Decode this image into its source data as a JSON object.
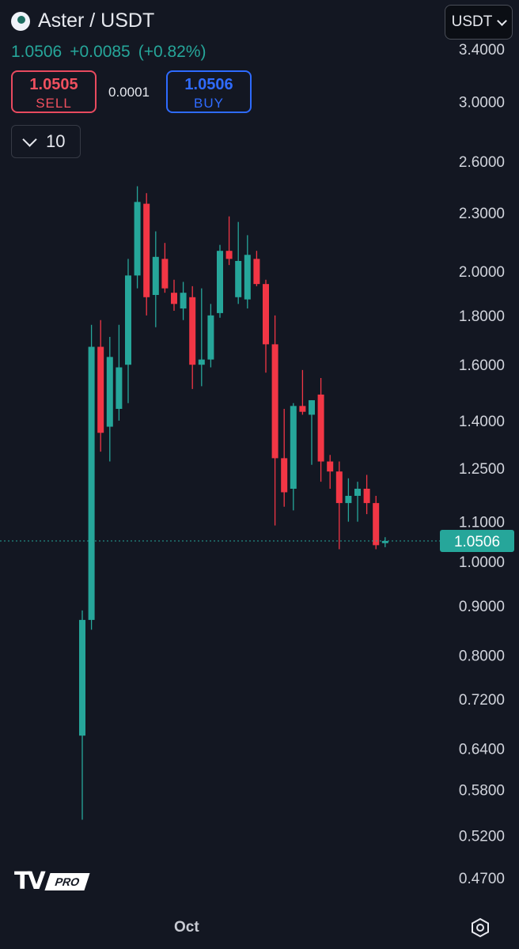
{
  "header": {
    "pair": "Aster / USDT",
    "last_price": "1.0506",
    "change": "+0.0085",
    "change_pct": "(+0.82%)",
    "sell_price": "1.0505",
    "sell_label": "SELL",
    "spread": "0.0001",
    "buy_price": "1.0506",
    "buy_label": "BUY",
    "interval": "10",
    "currency": "USDT"
  },
  "colors": {
    "up": "#26a69a",
    "down": "#f23645",
    "background": "#131722"
  },
  "icons": [
    "aster-logo-icon",
    "chevron-down-icon",
    "settings-icon",
    "tradingview-logo-icon"
  ],
  "branding": {
    "tv_pro": "PRO"
  },
  "chart_data": {
    "type": "candlestick",
    "y_scale": "log",
    "ylim": [
      0.45,
      3.5
    ],
    "y_ticks": [
      "3.4000",
      "3.0000",
      "2.6000",
      "2.3000",
      "2.0000",
      "1.8000",
      "1.6000",
      "1.4000",
      "1.2500",
      "1.1000",
      "1.0000",
      "0.9000",
      "0.8000",
      "0.7200",
      "0.6400",
      "0.5800",
      "0.5200",
      "0.4700"
    ],
    "x_ticks": [
      "Oct"
    ],
    "current_price_label": "1.0506",
    "candles": [
      {
        "o": 0.66,
        "h": 0.89,
        "l": 0.54,
        "c": 0.87
      },
      {
        "o": 0.87,
        "h": 1.76,
        "l": 0.85,
        "c": 1.67
      },
      {
        "o": 1.67,
        "h": 1.78,
        "l": 1.3,
        "c": 1.36
      },
      {
        "o": 1.38,
        "h": 1.71,
        "l": 1.27,
        "c": 1.63
      },
      {
        "o": 1.44,
        "h": 1.76,
        "l": 1.4,
        "c": 1.59
      },
      {
        "o": 1.6,
        "h": 2.06,
        "l": 1.46,
        "c": 1.98
      },
      {
        "o": 1.98,
        "h": 2.45,
        "l": 1.92,
        "c": 2.36
      },
      {
        "o": 2.35,
        "h": 2.41,
        "l": 1.8,
        "c": 1.88
      },
      {
        "o": 1.89,
        "h": 2.2,
        "l": 1.75,
        "c": 2.07
      },
      {
        "o": 2.06,
        "h": 2.14,
        "l": 1.9,
        "c": 1.92
      },
      {
        "o": 1.9,
        "h": 1.96,
        "l": 1.82,
        "c": 1.85
      },
      {
        "o": 1.83,
        "h": 1.95,
        "l": 1.78,
        "c": 1.9
      },
      {
        "o": 1.88,
        "h": 1.93,
        "l": 1.51,
        "c": 1.6
      },
      {
        "o": 1.6,
        "h": 1.92,
        "l": 1.52,
        "c": 1.62
      },
      {
        "o": 1.62,
        "h": 1.85,
        "l": 1.59,
        "c": 1.8
      },
      {
        "o": 1.81,
        "h": 2.13,
        "l": 1.79,
        "c": 2.1
      },
      {
        "o": 2.1,
        "h": 2.28,
        "l": 2.03,
        "c": 2.06
      },
      {
        "o": 1.88,
        "h": 2.25,
        "l": 1.85,
        "c": 2.05
      },
      {
        "o": 1.87,
        "h": 2.18,
        "l": 1.83,
        "c": 2.08
      },
      {
        "o": 2.06,
        "h": 2.1,
        "l": 1.93,
        "c": 1.94
      },
      {
        "o": 1.94,
        "h": 1.96,
        "l": 1.57,
        "c": 1.68
      },
      {
        "o": 1.68,
        "h": 1.8,
        "l": 1.09,
        "c": 1.28
      },
      {
        "o": 1.28,
        "h": 1.44,
        "l": 1.14,
        "c": 1.18
      },
      {
        "o": 1.19,
        "h": 1.46,
        "l": 1.13,
        "c": 1.45
      },
      {
        "o": 1.45,
        "h": 1.58,
        "l": 1.42,
        "c": 1.43
      },
      {
        "o": 1.42,
        "h": 1.47,
        "l": 1.26,
        "c": 1.47
      },
      {
        "o": 1.49,
        "h": 1.55,
        "l": 1.21,
        "c": 1.27
      },
      {
        "o": 1.27,
        "h": 1.29,
        "l": 1.19,
        "c": 1.24
      },
      {
        "o": 1.24,
        "h": 1.27,
        "l": 1.03,
        "c": 1.15
      },
      {
        "o": 1.15,
        "h": 1.22,
        "l": 1.1,
        "c": 1.17
      },
      {
        "o": 1.17,
        "h": 1.21,
        "l": 1.1,
        "c": 1.19
      },
      {
        "o": 1.19,
        "h": 1.23,
        "l": 1.12,
        "c": 1.15
      },
      {
        "o": 1.15,
        "h": 1.17,
        "l": 1.03,
        "c": 1.04
      },
      {
        "o": 1.045,
        "h": 1.06,
        "l": 1.035,
        "c": 1.0506
      }
    ]
  }
}
